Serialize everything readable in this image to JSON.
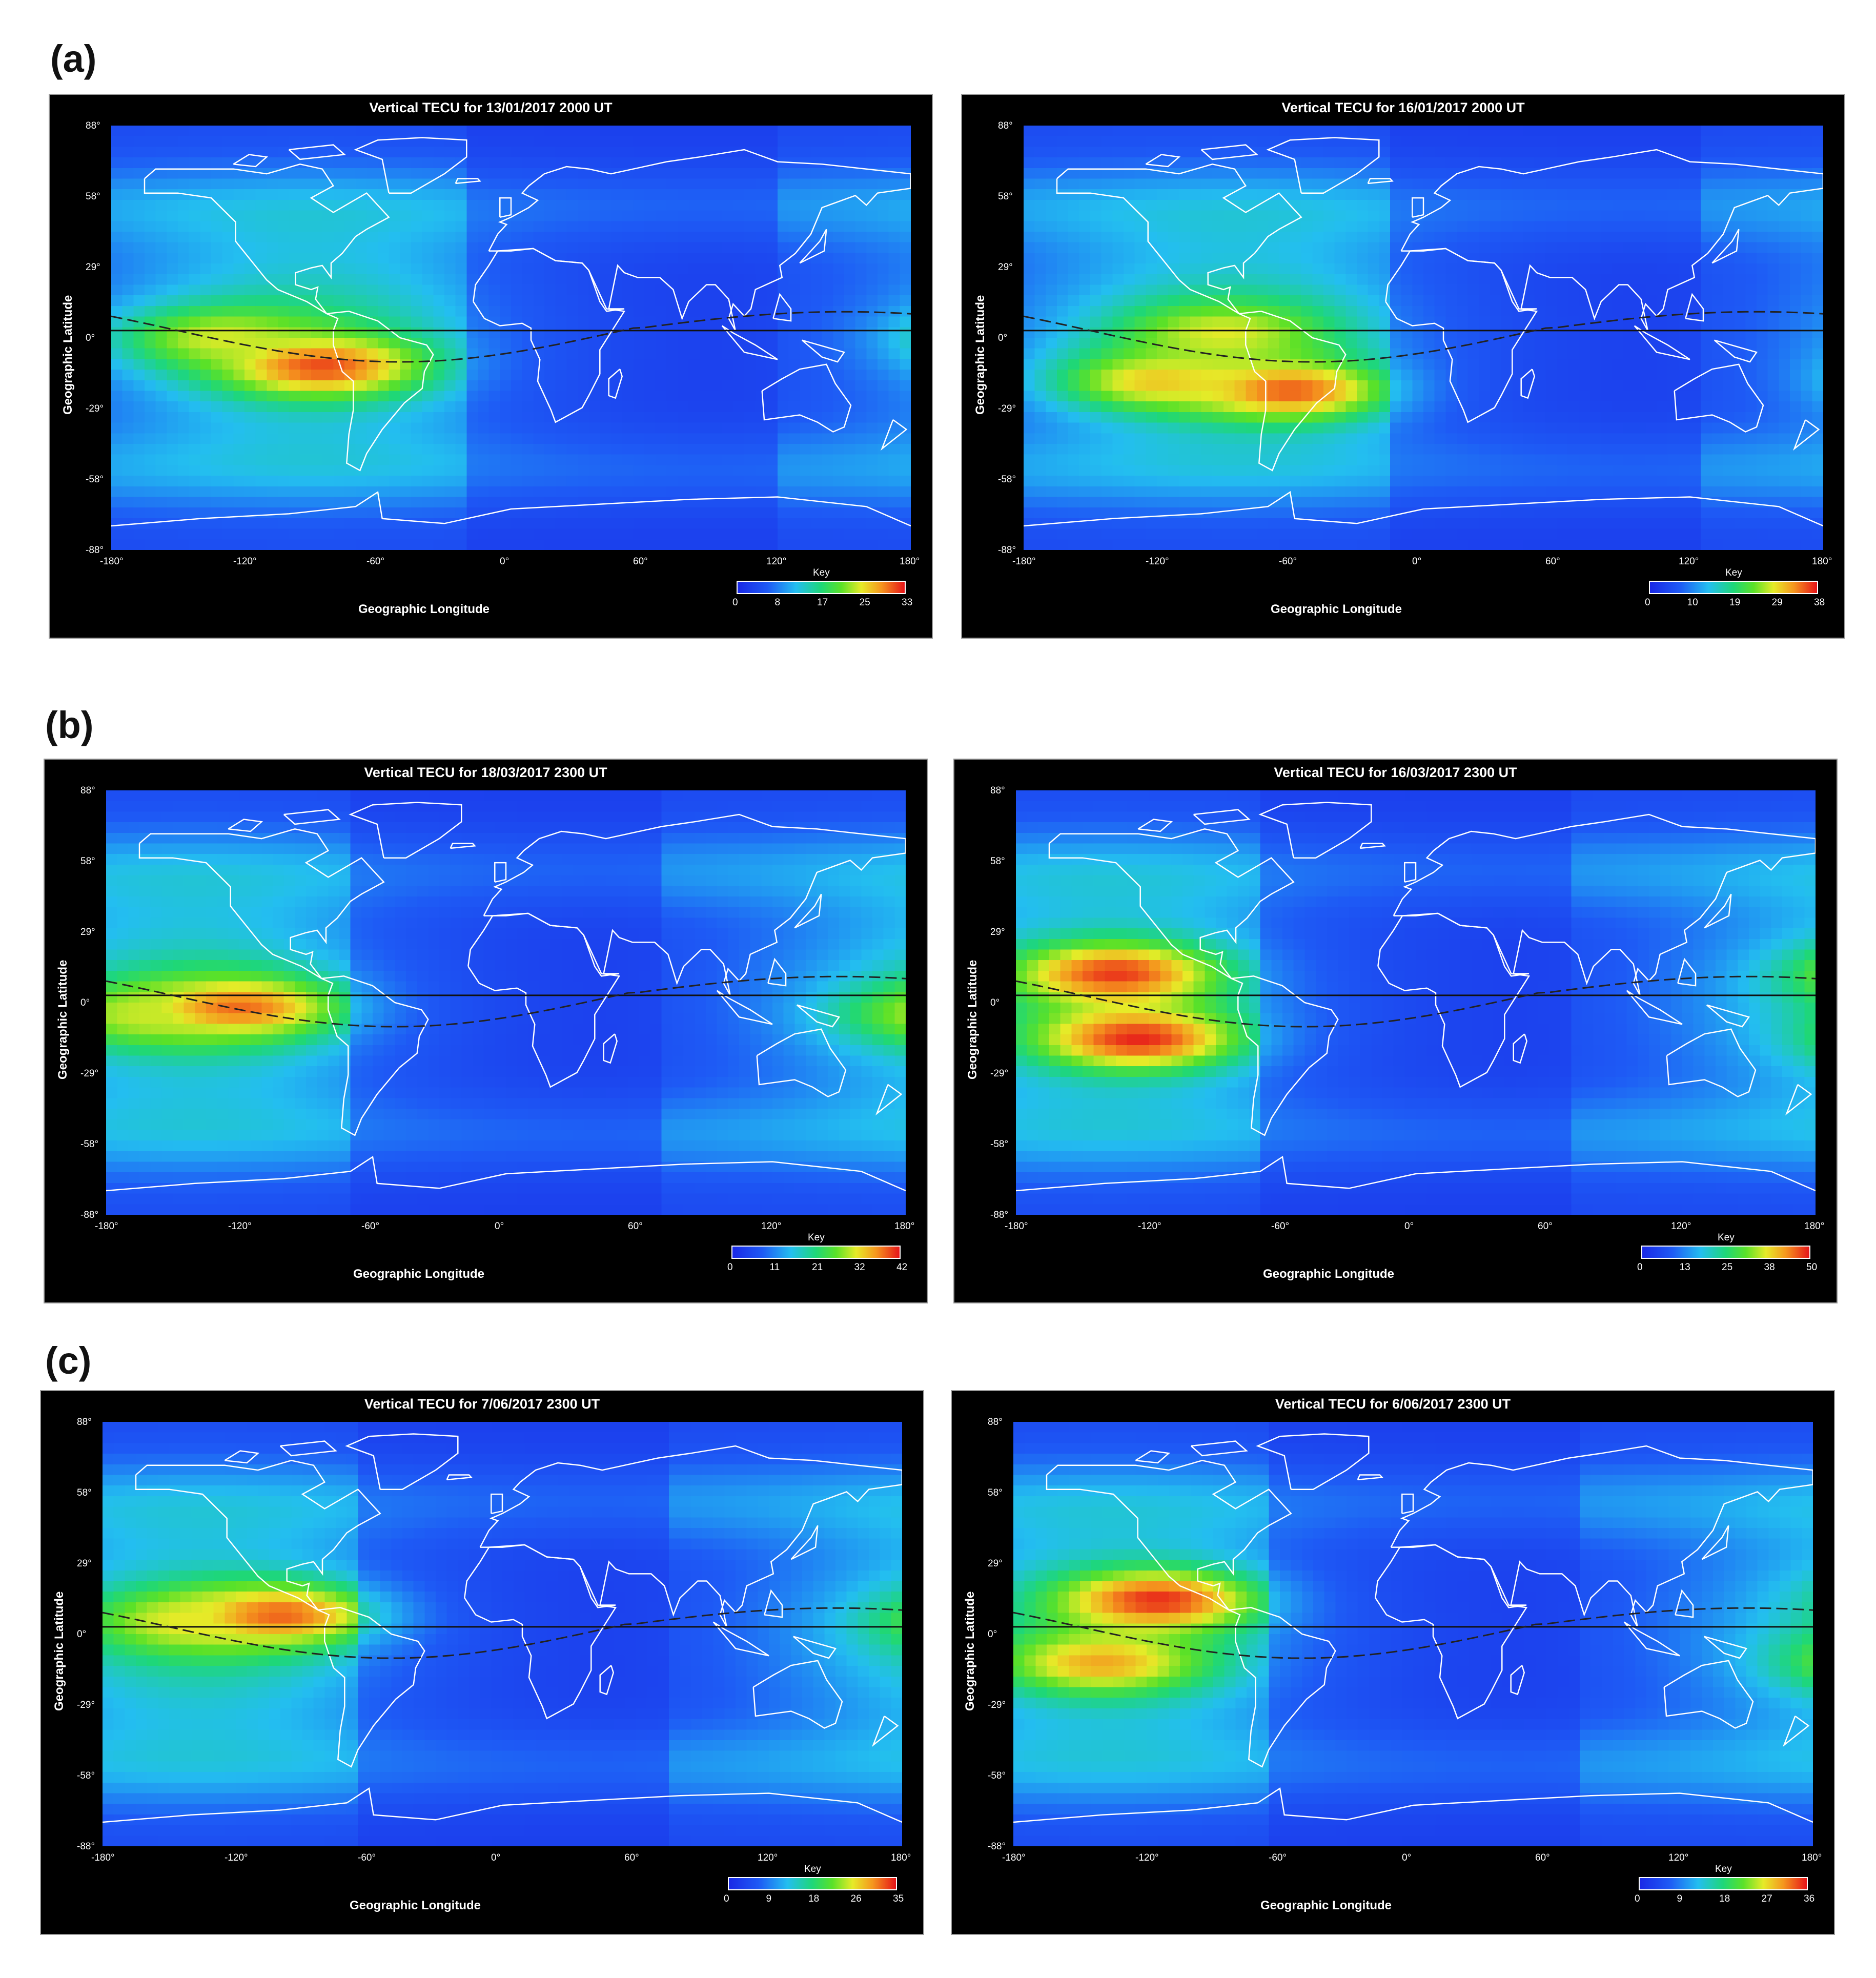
{
  "row_labels": [
    "(a)",
    "(b)",
    "(c)"
  ],
  "colors": {
    "low": "#1f3ff0",
    "mid": "#22d36a",
    "high": "#f07a1a",
    "peak": "#e3101a",
    "coast": "#ffffff",
    "background": "#000000"
  },
  "chart_data": [
    {
      "type": "heatmap",
      "title": "Vertical TECU for 13/01/2017 2000 UT",
      "xlabel": "Geographic Longitude",
      "ylabel": "Geographic Latitude",
      "xticks": [
        "-180°",
        "-120°",
        "-60°",
        "0°",
        "60°",
        "120°",
        "180°"
      ],
      "yticks": [
        "88°",
        "58°",
        "29°",
        "0°",
        "-29°",
        "-58°",
        "-88°"
      ],
      "xlim": [
        -180,
        180
      ],
      "ylim": [
        -88,
        88
      ],
      "colorbar": {
        "label": "Key",
        "ticks": [
          "0",
          "8",
          "17",
          "25",
          "33"
        ],
        "range": [
          0,
          33
        ]
      },
      "peaks": [
        {
          "lon": -85,
          "lat": -12,
          "value": 31
        },
        {
          "lon": -130,
          "lat": 0,
          "value": 24
        }
      ],
      "terminator_lon": -20
    },
    {
      "type": "heatmap",
      "title": "Vertical TECU for 16/01/2017 2000 UT",
      "xlabel": "Geographic Longitude",
      "ylabel": "Geographic Latitude",
      "xticks": [
        "-180°",
        "-120°",
        "-60°",
        "0°",
        "60°",
        "120°",
        "180°"
      ],
      "yticks": [
        "88°",
        "58°",
        "29°",
        "0°",
        "-29°",
        "-58°",
        "-88°"
      ],
      "xlim": [
        -180,
        180
      ],
      "ylim": [
        -88,
        88
      ],
      "colorbar": {
        "label": "Key",
        "ticks": [
          "0",
          "10",
          "19",
          "29",
          "38"
        ],
        "range": [
          0,
          38
        ]
      },
      "peaks": [
        {
          "lon": -60,
          "lat": -22,
          "value": 35
        },
        {
          "lon": -120,
          "lat": -18,
          "value": 30
        },
        {
          "lon": -90,
          "lat": 2,
          "value": 28
        }
      ],
      "terminator_lon": -15
    },
    {
      "type": "heatmap",
      "title": "Vertical TECU for 18/03/2017 2300 UT",
      "xlabel": "Geographic Longitude",
      "ylabel": "Geographic Latitude",
      "xticks": [
        "-180°",
        "-120°",
        "-60°",
        "0°",
        "60°",
        "120°",
        "180°"
      ],
      "yticks": [
        "88°",
        "58°",
        "29°",
        "0°",
        "-29°",
        "-58°",
        "-88°"
      ],
      "xlim": [
        -180,
        180
      ],
      "ylim": [
        -88,
        88
      ],
      "colorbar": {
        "label": "Key",
        "ticks": [
          "0",
          "11",
          "21",
          "32",
          "42"
        ],
        "range": [
          0,
          42
        ]
      },
      "peaks": [
        {
          "lon": -120,
          "lat": -2,
          "value": 38
        },
        {
          "lon": -160,
          "lat": -5,
          "value": 30
        }
      ],
      "terminator_lon": -70
    },
    {
      "type": "heatmap",
      "title": "Vertical TECU for 16/03/2017 2300 UT",
      "xlabel": "Geographic Longitude",
      "ylabel": "Geographic Latitude",
      "xticks": [
        "-180°",
        "-120°",
        "-60°",
        "0°",
        "60°",
        "120°",
        "180°"
      ],
      "yticks": [
        "88°",
        "58°",
        "29°",
        "0°",
        "-29°",
        "-58°",
        "-88°"
      ],
      "xlim": [
        -180,
        180
      ],
      "ylim": [
        -88,
        88
      ],
      "colorbar": {
        "label": "Key",
        "ticks": [
          "0",
          "13",
          "25",
          "38",
          "50"
        ],
        "range": [
          0,
          50
        ]
      },
      "peaks": [
        {
          "lon": -135,
          "lat": 12,
          "value": 48
        },
        {
          "lon": -125,
          "lat": -15,
          "value": 49
        }
      ],
      "terminator_lon": -68
    },
    {
      "type": "heatmap",
      "title": "Vertical TECU for 7/06/2017 2300 UT",
      "xlabel": "Geographic Longitude",
      "ylabel": "Geographic Latitude",
      "xticks": [
        "-180°",
        "-120°",
        "-60°",
        "0°",
        "60°",
        "120°",
        "180°"
      ],
      "yticks": [
        "88°",
        "58°",
        "29°",
        "0°",
        "-29°",
        "-58°",
        "-88°"
      ],
      "xlim": [
        -180,
        180
      ],
      "ylim": [
        -88,
        88
      ],
      "colorbar": {
        "label": "Key",
        "ticks": [
          "0",
          "9",
          "18",
          "26",
          "35"
        ],
        "range": [
          0,
          35
        ]
      },
      "peaks": [
        {
          "lon": -100,
          "lat": 8,
          "value": 32
        },
        {
          "lon": -140,
          "lat": 5,
          "value": 26
        }
      ],
      "terminator_lon": -65
    },
    {
      "type": "heatmap",
      "title": "Vertical TECU for 6/06/2017 2300 UT",
      "xlabel": "Geographic Longitude",
      "ylabel": "Geographic Latitude",
      "xticks": [
        "-180°",
        "-120°",
        "-60°",
        "0°",
        "60°",
        "120°",
        "180°"
      ],
      "yticks": [
        "88°",
        "58°",
        "29°",
        "0°",
        "-29°",
        "-58°",
        "-88°"
      ],
      "xlim": [
        -180,
        180
      ],
      "ylim": [
        -88,
        88
      ],
      "colorbar": {
        "label": "Key",
        "ticks": [
          "0",
          "9",
          "18",
          "27",
          "36"
        ],
        "range": [
          0,
          36
        ]
      },
      "peaks": [
        {
          "lon": -115,
          "lat": 14,
          "value": 35
        },
        {
          "lon": -140,
          "lat": -12,
          "value": 30
        }
      ],
      "terminator_lon": -65
    }
  ]
}
